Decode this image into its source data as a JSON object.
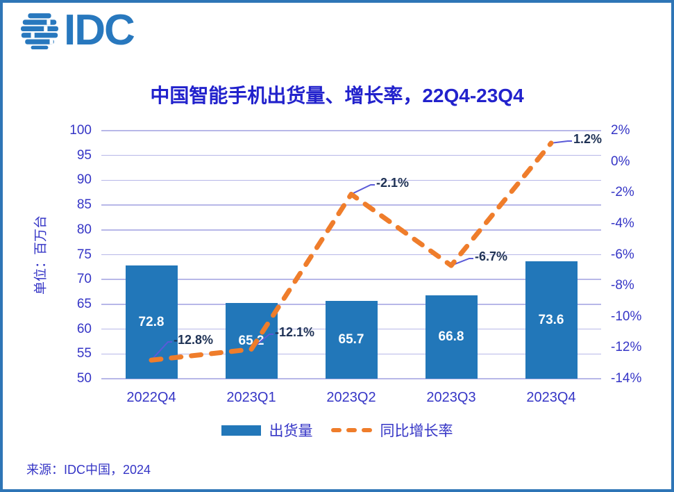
{
  "logo": {
    "text": "IDC",
    "icon": "globe-stripes-icon"
  },
  "title": "中国智能手机出货量、增长率，22Q4-23Q4",
  "source": "来源：IDC中国，2024",
  "legend": {
    "bar_label": "出货量",
    "line_label": "同比增长率"
  },
  "colors": {
    "frame_border": "#2E75B6",
    "logo_blue": "#2878BE",
    "title_blue": "#2222CC",
    "axis_text": "#3535C6",
    "gridline": "#B7B7E8",
    "bar_fill": "#2277B9",
    "bar_label": "#FFFFFF",
    "line_orange": "#EF7D2B",
    "data_label_navy": "#1F3255",
    "leader_line": "#5A5AD8"
  },
  "chart_data": {
    "type": "bar",
    "title": "中国智能手机出货量、增长率，22Q4-23Q4",
    "categories": [
      "2022Q4",
      "2023Q1",
      "2023Q2",
      "2023Q3",
      "2023Q4"
    ],
    "series": [
      {
        "name": "出货量",
        "type": "bar",
        "axis": "left",
        "values": [
          72.8,
          65.2,
          65.7,
          66.8,
          73.6
        ],
        "labels": [
          "72.8",
          "65.2",
          "65.7",
          "66.8",
          "73.6"
        ],
        "color": "#2277B9"
      },
      {
        "name": "同比增长率",
        "type": "line",
        "style": "dashed",
        "axis": "right",
        "values": [
          -12.8,
          -12.1,
          -2.1,
          -6.7,
          1.2
        ],
        "labels": [
          "-12.8%",
          "-12.1%",
          "-2.1%",
          "-6.7%",
          "1.2%"
        ],
        "color": "#EF7D2B"
      }
    ],
    "left_axis": {
      "title": "单位：百万台",
      "min": 50,
      "max": 100,
      "tick_step": 5,
      "tick_values": [
        100,
        95,
        90,
        85,
        80,
        75,
        70,
        65,
        60,
        55,
        50
      ],
      "tick_labels": [
        "100",
        "95",
        "90",
        "85",
        "80",
        "75",
        "70",
        "65",
        "60",
        "55",
        "50"
      ]
    },
    "right_axis": {
      "min": -14,
      "max": 2,
      "tick_step": 2,
      "tick_values": [
        2,
        0,
        -2,
        -4,
        -6,
        -8,
        -10,
        -12,
        -14
      ],
      "tick_labels": [
        "2%",
        "0%",
        "-2%",
        "-4%",
        "-6%",
        "-8%",
        "-10%",
        "-12%",
        "-14%"
      ]
    },
    "grid": "horizontal",
    "legend_position": "bottom"
  }
}
